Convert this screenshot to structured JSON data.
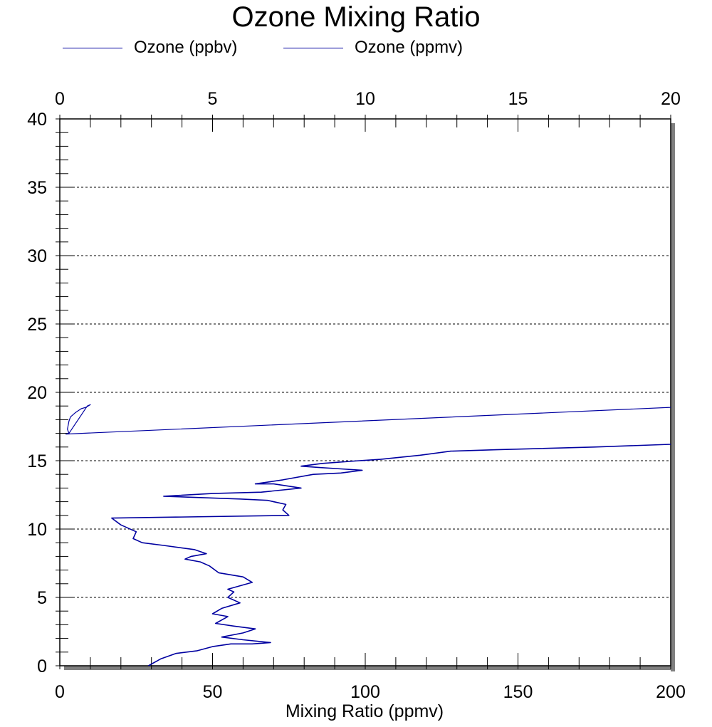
{
  "chart_data": {
    "type": "line",
    "title": "Ozone Mixing Ratio",
    "xlabel": "Mixing Ratio (ppmv)",
    "ylabel": "",
    "xlim": [
      0,
      200
    ],
    "ylim": [
      0,
      40
    ],
    "x2lim": [
      0,
      20
    ],
    "xticks": [
      "0",
      "50",
      "100",
      "150",
      "200"
    ],
    "x2ticks": [
      "0",
      "5",
      "10",
      "15",
      "20"
    ],
    "yticks": [
      "0",
      "5",
      "10",
      "15",
      "20",
      "25",
      "30",
      "35",
      "40"
    ],
    "grid": "horizontal dashed",
    "legend_position": "top",
    "colors": {
      "series": "#0000a0",
      "axis": "#000000",
      "shadow": "#808080"
    },
    "series": [
      {
        "name": "Ozone (ppbv)",
        "axis": "bottom",
        "points": [
          [
            29,
            0.0
          ],
          [
            33,
            0.5
          ],
          [
            38,
            0.9
          ],
          [
            45,
            1.1
          ],
          [
            50,
            1.4
          ],
          [
            56,
            1.6
          ],
          [
            63,
            1.6
          ],
          [
            69,
            1.7
          ],
          [
            60,
            1.9
          ],
          [
            53,
            2.1
          ],
          [
            60,
            2.4
          ],
          [
            64,
            2.7
          ],
          [
            57,
            2.9
          ],
          [
            51,
            3.1
          ],
          [
            55,
            3.6
          ],
          [
            50,
            3.8
          ],
          [
            53,
            4.2
          ],
          [
            59,
            4.6
          ],
          [
            55,
            5.0
          ],
          [
            57,
            5.4
          ],
          [
            55,
            5.6
          ],
          [
            63,
            6.1
          ],
          [
            60,
            6.5
          ],
          [
            52,
            6.8
          ],
          [
            49,
            7.3
          ],
          [
            46,
            7.6
          ],
          [
            41,
            7.8
          ],
          [
            43,
            8.0
          ],
          [
            48,
            8.2
          ],
          [
            44,
            8.5
          ],
          [
            34,
            8.8
          ],
          [
            27,
            9.0
          ],
          [
            24,
            9.3
          ],
          [
            25,
            9.8
          ],
          [
            20,
            10.3
          ],
          [
            17,
            10.8
          ],
          [
            75,
            11.0
          ],
          [
            73,
            11.4
          ],
          [
            74,
            11.8
          ],
          [
            68,
            12.1
          ],
          [
            59,
            12.2
          ],
          [
            46,
            12.3
          ],
          [
            34,
            12.4
          ],
          [
            50,
            12.6
          ],
          [
            66,
            12.7
          ],
          [
            79,
            13.0
          ],
          [
            70,
            13.3
          ],
          [
            64,
            13.3
          ],
          [
            73,
            13.6
          ],
          [
            83,
            14.0
          ],
          [
            92,
            14.1
          ],
          [
            99,
            14.3
          ],
          [
            92,
            14.4
          ],
          [
            85,
            14.5
          ],
          [
            79,
            14.6
          ],
          [
            86,
            14.8
          ],
          [
            98,
            15.0
          ],
          [
            105,
            15.1
          ],
          [
            118,
            15.4
          ],
          [
            128,
            15.7
          ],
          [
            143,
            15.8
          ],
          [
            175,
            16.0
          ],
          [
            200,
            16.2
          ]
        ]
      },
      {
        "name": "Ozone (ppmv)",
        "axis": "top",
        "points": [
          [
            0.3,
            17.0
          ],
          [
            0.25,
            17.3
          ],
          [
            0.3,
            17.9
          ],
          [
            0.35,
            18.2
          ],
          [
            0.5,
            18.5
          ],
          [
            0.7,
            18.8
          ],
          [
            0.85,
            18.9
          ],
          [
            1.0,
            19.1
          ],
          [
            0.9,
            19.0
          ],
          [
            0.3,
            17.0
          ],
          [
            0.2,
            16.95
          ],
          [
            20,
            18.9
          ]
        ]
      }
    ]
  }
}
